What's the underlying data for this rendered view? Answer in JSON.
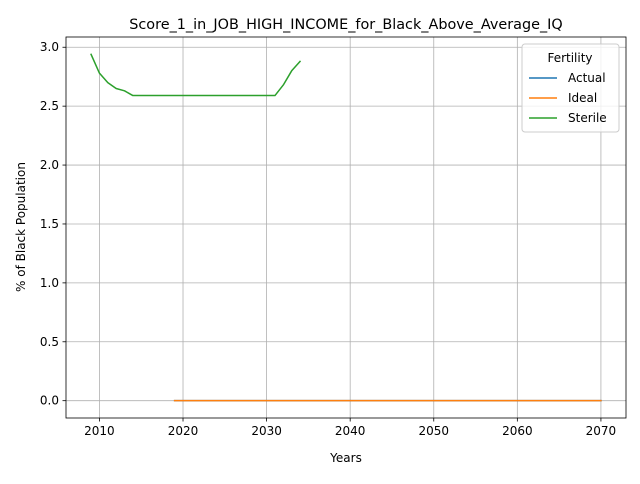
{
  "chart_data": {
    "type": "line",
    "title": "Score_1_in_JOB_HIGH_INCOME_for_Black_Above_Average_IQ",
    "xlabel": "Years",
    "ylabel": "% of Black Population",
    "xlim": [
      2006,
      2073
    ],
    "ylim": [
      -0.147,
      3.087
    ],
    "xticks": [
      2010,
      2020,
      2030,
      2040,
      2050,
      2060,
      2070
    ],
    "yticks": [
      0.0,
      0.5,
      1.0,
      1.5,
      2.0,
      2.5,
      3.0
    ],
    "xtick_labels": [
      "2010",
      "2020",
      "2030",
      "2040",
      "2050",
      "2060",
      "2070"
    ],
    "ytick_labels": [
      "0.0",
      "0.5",
      "1.0",
      "1.5",
      "2.0",
      "2.5",
      "3.0"
    ],
    "grid": true,
    "legend": {
      "title": "Fertility",
      "position": "top-right"
    },
    "series": [
      {
        "name": "Actual",
        "color": "#1f77b4",
        "x": [
          2019,
          2070
        ],
        "y": [
          0.0,
          0.0
        ]
      },
      {
        "name": "Ideal",
        "color": "#ff7f0e",
        "x": [
          2019,
          2070
        ],
        "y": [
          0.0,
          0.0
        ]
      },
      {
        "name": "Sterile",
        "color": "#2ca02c",
        "x": [
          2009,
          2010,
          2011,
          2012,
          2013,
          2014,
          2015,
          2016,
          2017,
          2018,
          2019,
          2020,
          2021,
          2022,
          2023,
          2024,
          2025,
          2026,
          2027,
          2028,
          2029,
          2030,
          2031,
          2032,
          2033,
          2034
        ],
        "y": [
          2.94,
          2.78,
          2.7,
          2.65,
          2.63,
          2.59,
          2.59,
          2.59,
          2.59,
          2.59,
          2.59,
          2.59,
          2.59,
          2.59,
          2.59,
          2.59,
          2.59,
          2.59,
          2.59,
          2.59,
          2.59,
          2.59,
          2.59,
          2.68,
          2.8,
          2.88
        ]
      }
    ]
  }
}
